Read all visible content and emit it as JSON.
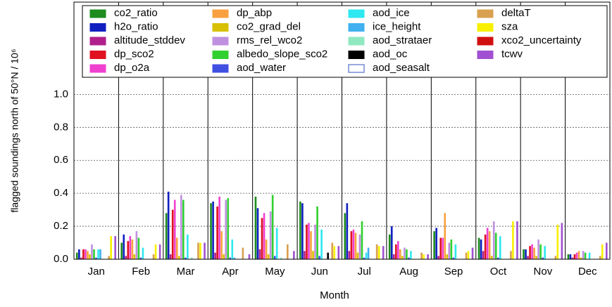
{
  "chart_data": {
    "type": "bar",
    "x_label": "Month",
    "y_label": "flagged soundings north of 50°N / 10⁶",
    "categories": [
      "Jan",
      "Feb",
      "Mar",
      "Apr",
      "May",
      "Jun",
      "Jul",
      "Aug",
      "Sep",
      "Oct",
      "Nov",
      "Dec"
    ],
    "ylim": [
      0,
      1.56
    ],
    "yticks": [
      {
        "value": 0,
        "label": "0.0"
      },
      {
        "value": 0.2,
        "label": "0.2"
      },
      {
        "value": 0.4,
        "label": "0.4"
      },
      {
        "value": 0.6,
        "label": "0.6"
      },
      {
        "value": 0.8,
        "label": "0.8"
      },
      {
        "value": 1.0,
        "label": "1.0"
      }
    ],
    "grid": true,
    "legend": "top",
    "series": [
      {
        "name": "co2_ratio",
        "color": "#1e8c1e",
        "values": [
          0.04,
          0.1,
          0.28,
          0.34,
          0.38,
          0.35,
          0.28,
          0.15,
          0.17,
          0.13,
          0.06,
          0.03
        ]
      },
      {
        "name": "h2o_ratio",
        "color": "#1020c0",
        "values": [
          0.06,
          0.15,
          0.41,
          0.35,
          0.31,
          0.34,
          0.34,
          0.2,
          0.19,
          0.12,
          0.06,
          0.03
        ]
      },
      {
        "name": "altitude_stddev",
        "color": "#b0208c",
        "values": [
          0.01,
          0.02,
          0.03,
          0.04,
          0.06,
          0.05,
          0.05,
          0.03,
          0.02,
          0.05,
          0.02,
          0.01
        ]
      },
      {
        "name": "dp_sco2",
        "color": "#e01020",
        "values": [
          0.06,
          0.11,
          0.3,
          0.32,
          0.25,
          0.21,
          0.17,
          0.09,
          0.13,
          0.15,
          0.08,
          0.03
        ]
      },
      {
        "name": "dp_o2a",
        "color": "#f040d0",
        "values": [
          0.06,
          0.14,
          0.36,
          0.38,
          0.28,
          0.22,
          0.18,
          0.11,
          0.13,
          0.19,
          0.09,
          0.04
        ]
      },
      {
        "name": "dp_abp",
        "color": "#f8a040",
        "values": [
          0.05,
          0.12,
          0.13,
          0.17,
          0.12,
          0.17,
          0.16,
          0.06,
          0.28,
          0.17,
          0.07,
          0.05
        ]
      },
      {
        "name": "co2_grad_del",
        "color": "#d8c000",
        "values": [
          0.03,
          0.03,
          0.02,
          0.03,
          0.03,
          0.05,
          0.04,
          0.02,
          0.03,
          0.02,
          0.02,
          0.01
        ]
      },
      {
        "name": "rms_rel_wco2",
        "color": "#c090e0",
        "values": [
          0.09,
          0.17,
          0.39,
          0.36,
          0.29,
          0.21,
          0.15,
          0.07,
          0.1,
          0.23,
          0.12,
          0.05
        ]
      },
      {
        "name": "albedo_slope_sco2",
        "color": "#30d030",
        "values": [
          0.06,
          0.13,
          0.36,
          0.37,
          0.39,
          0.32,
          0.23,
          0.06,
          0.12,
          0.16,
          0.09,
          0.04
        ]
      },
      {
        "name": "aod_water",
        "color": "#4050e0",
        "values": [
          0.01,
          0.01,
          0.01,
          0.01,
          0.02,
          0.02,
          0.01,
          0.01,
          0.01,
          0.01,
          0.01,
          0.0
        ]
      },
      {
        "name": "aod_ice",
        "color": "#30e8f0",
        "values": [
          0.06,
          0.07,
          0.15,
          0.12,
          0.19,
          0.18,
          0.04,
          0.05,
          0.09,
          0.14,
          0.08,
          0.04
        ]
      },
      {
        "name": "ice_height",
        "color": "#40b0f0",
        "values": [
          0.06,
          0.0,
          0.0,
          0.01,
          0.0,
          0.0,
          0.07,
          0.0,
          0.0,
          0.0,
          0.0,
          0.0
        ]
      },
      {
        "name": "aod_strataer",
        "color": "#90e8c0",
        "values": [
          0.0,
          0.0,
          0.01,
          0.0,
          0.01,
          0.0,
          0.0,
          0.0,
          0.0,
          0.0,
          0.0,
          0.0
        ]
      },
      {
        "name": "aod_oc",
        "color": "#000000",
        "values": [
          0.0,
          0.0,
          0.0,
          0.0,
          0.0,
          0.04,
          0.0,
          0.0,
          0.0,
          0.0,
          0.0,
          0.0
        ]
      },
      {
        "name": "aod_seasalt",
        "color": "#ffffff",
        "values": [
          0.0,
          0.0,
          0.0,
          0.0,
          0.0,
          0.0,
          0.0,
          0.0,
          0.0,
          0.0,
          0.0,
          0.0
        ]
      },
      {
        "name": "deltaT",
        "color": "#d8a050",
        "values": [
          0.02,
          0.03,
          0.1,
          0.07,
          0.09,
          0.1,
          0.09,
          0.04,
          0.04,
          0.05,
          0.02,
          0.02
        ]
      },
      {
        "name": "sza",
        "color": "#f8f000",
        "values": [
          0.14,
          0.09,
          0.1,
          0.0,
          0.0,
          0.08,
          0.08,
          0.03,
          0.05,
          0.23,
          0.21,
          0.09
        ]
      },
      {
        "name": "xco2_uncertainty",
        "color": "#d01010",
        "values": [
          0.0,
          0.0,
          0.0,
          0.0,
          0.0,
          0.0,
          0.0,
          0.0,
          0.0,
          0.0,
          0.0,
          0.0
        ]
      },
      {
        "name": "tcwv",
        "color": "#a050d0",
        "values": [
          0.14,
          0.09,
          0.1,
          0.03,
          0.05,
          0.08,
          0.08,
          0.03,
          0.07,
          0.23,
          0.22,
          0.1
        ]
      }
    ]
  }
}
